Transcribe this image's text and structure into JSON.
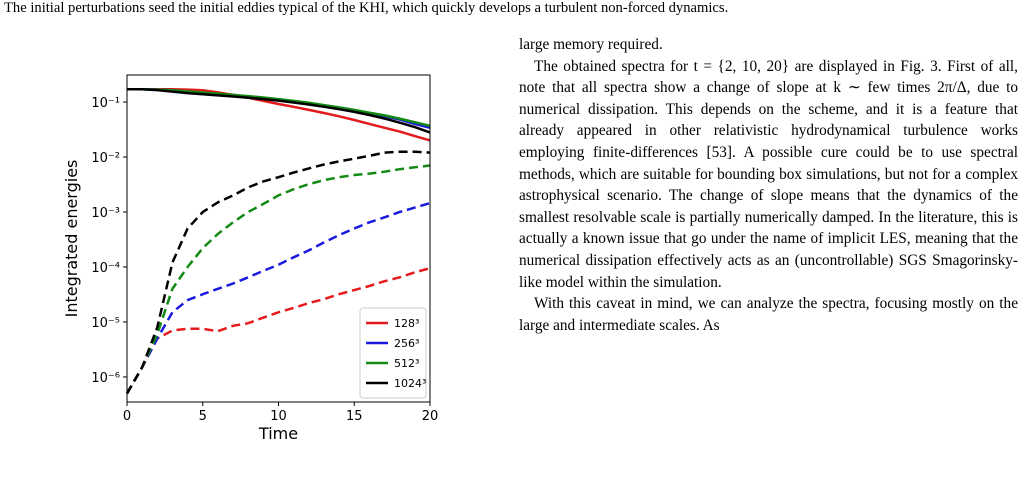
{
  "header": {
    "text": "The initial perturbations seed the initial eddies typical of the KHI, which quickly develops a turbulent non-forced dynamics."
  },
  "chart_data": {
    "type": "line",
    "ylabel": "Integrated energies",
    "xlabel": "Time",
    "log_y": true,
    "legend": "lower right",
    "x": [
      0,
      1,
      2,
      3,
      4,
      5,
      6,
      7,
      8,
      9,
      10,
      11,
      12,
      13,
      14,
      15,
      16,
      17,
      18,
      19,
      20
    ],
    "xlim": [
      0,
      20
    ],
    "xticks": [
      0,
      5,
      10,
      15,
      20
    ],
    "ylim": [
      3.5e-07,
      0.31
    ],
    "yticks": [
      {
        "value": 1e-06,
        "label": "10⁻⁶"
      },
      {
        "value": 1e-05,
        "label": "10⁻⁵"
      },
      {
        "value": 0.0001,
        "label": "10⁻⁴"
      },
      {
        "value": 0.001,
        "label": "10⁻³"
      },
      {
        "value": 0.01,
        "label": "10⁻²"
      },
      {
        "value": 0.1,
        "label": "10⁻¹"
      }
    ],
    "series": [
      {
        "name": "128³",
        "color": "#e41a1c",
        "values": [
          0.17,
          0.17,
          0.17,
          0.17,
          0.168,
          0.163,
          0.15,
          0.135,
          0.12,
          0.105,
          0.092,
          0.082,
          0.072,
          0.063,
          0.055,
          0.047,
          0.04,
          0.034,
          0.029,
          0.024,
          0.02
        ],
        "dashed_values": [
          5e-07,
          1.5e-06,
          5e-06,
          7e-06,
          7.5e-06,
          7.5e-06,
          6.8e-06,
          8.5e-06,
          9.5e-06,
          1.2e-05,
          1.5e-05,
          1.8e-05,
          2.2e-05,
          2.6e-05,
          3.2e-05,
          3.8e-05,
          4.5e-05,
          5.5e-05,
          6.5e-05,
          8e-05,
          9.5e-05
        ]
      },
      {
        "name": "256³",
        "color": "#1a1adf",
        "values": [
          0.17,
          0.17,
          0.168,
          0.163,
          0.155,
          0.147,
          0.14,
          0.133,
          0.126,
          0.118,
          0.11,
          0.102,
          0.094,
          0.086,
          0.078,
          0.07,
          0.062,
          0.055,
          0.048,
          0.04,
          0.034
        ],
        "dashed_values": [
          5e-07,
          1.5e-06,
          5e-06,
          1.5e-05,
          2.5e-05,
          3.2e-05,
          4e-05,
          5e-05,
          6.5e-05,
          8.5e-05,
          0.00011,
          0.00015,
          0.0002,
          0.00028,
          0.00038,
          0.0005,
          0.00065,
          0.0008,
          0.001,
          0.0012,
          0.00145
        ]
      },
      {
        "name": "512³",
        "color": "#138a13",
        "values": [
          0.17,
          0.17,
          0.168,
          0.163,
          0.156,
          0.149,
          0.142,
          0.135,
          0.128,
          0.121,
          0.113,
          0.105,
          0.097,
          0.088,
          0.08,
          0.072,
          0.064,
          0.057,
          0.05,
          0.043,
          0.037
        ],
        "dashed_values": [
          5e-07,
          1.5e-06,
          6e-06,
          4e-05,
          0.0001,
          0.00022,
          0.0004,
          0.00065,
          0.001,
          0.0014,
          0.002,
          0.0026,
          0.0032,
          0.0038,
          0.0043,
          0.0047,
          0.005,
          0.0054,
          0.006,
          0.0065,
          0.007
        ]
      },
      {
        "name": "1024³",
        "color": "#000000",
        "values": [
          0.17,
          0.17,
          0.165,
          0.155,
          0.145,
          0.138,
          0.132,
          0.126,
          0.12,
          0.113,
          0.106,
          0.098,
          0.09,
          0.082,
          0.074,
          0.066,
          0.058,
          0.05,
          0.042,
          0.035,
          0.028
        ],
        "dashed_values": [
          5e-07,
          1.5e-06,
          8e-06,
          0.00012,
          0.0005,
          0.001,
          0.0015,
          0.002,
          0.0028,
          0.0036,
          0.0043,
          0.0052,
          0.0062,
          0.0073,
          0.0083,
          0.0093,
          0.0105,
          0.012,
          0.0125,
          0.0125,
          0.012
        ]
      }
    ]
  },
  "body": {
    "paragraphs": [
      "large memory required.",
      "The obtained spectra for t = {2, 10, 20} are displayed in Fig. 3. First of all, note that all spectra show a change of slope at k ∼ few times 2π/Δ, due to numerical dissipation. This depends on the scheme, and it is a feature that already appeared in other relativistic hydrodynamical turbulence works employing finite-differences [53]. A possible cure could be to use spectral methods, which are suitable for bounding box simulations, but not for a complex astrophysical scenario. The change of slope means that the dynamics of the smallest resolvable scale is partially numerically damped. In the literature, this is actually a known issue that go under the name of implicit LES, meaning that the numerical dissipation effectively acts as an (uncontrollable) SGS Smagorinsky-like model within the simulation.",
      "With this caveat in mind, we can analyze the spectra, focusing mostly on the large and intermediate scales. As"
    ]
  }
}
